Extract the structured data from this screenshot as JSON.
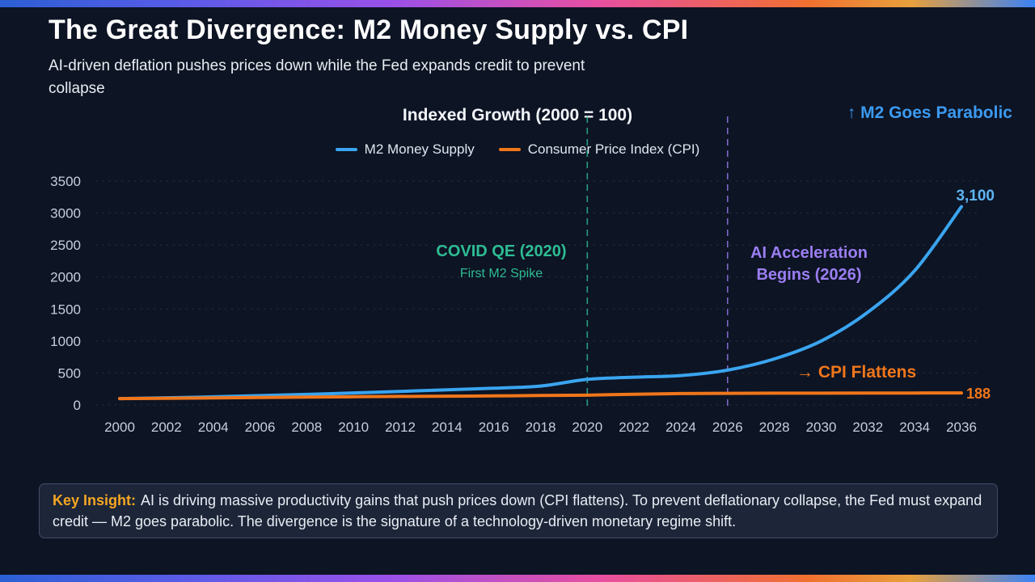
{
  "slide": {
    "title": "The Great Divergence: M2 Money Supply vs. CPI",
    "subtitle": "AI-driven deflation pushes prices down while the Fed expands credit to prevent collapse"
  },
  "chart_data": {
    "type": "line",
    "title": "Indexed Growth (2000 = 100)",
    "xlabel": "",
    "ylabel": "",
    "x": [
      2000,
      2002,
      2004,
      2006,
      2008,
      2010,
      2012,
      2014,
      2016,
      2018,
      2020,
      2022,
      2024,
      2026,
      2028,
      2030,
      2032,
      2034,
      2036
    ],
    "series": [
      {
        "name": "M2 Money Supply",
        "color": "#3aa5f0",
        "label_color": "#5eb5f2",
        "values": [
          100,
          112,
          128,
          146,
          165,
          188,
          212,
          236,
          262,
          296,
          400,
          435,
          460,
          545,
          720,
          1000,
          1450,
          2100,
          3100
        ],
        "end_label": "3,100"
      },
      {
        "name": "Consumer Price Index (CPI)",
        "color": "#f0761a",
        "label_color": "#f0761a",
        "values": [
          100,
          104,
          110,
          117,
          124,
          129,
          134,
          138,
          142,
          148,
          153,
          168,
          178,
          182,
          184,
          185,
          186,
          187,
          188
        ],
        "end_label": "188"
      }
    ],
    "ylim": [
      0,
      3500
    ],
    "yticks": [
      0,
      500,
      1000,
      1500,
      2000,
      2500,
      3000,
      3500
    ],
    "grid": true,
    "legend_position": "top",
    "vlines": [
      {
        "x": 2020,
        "color": "#2ebd93",
        "label": "COVID QE (2020)",
        "sublabel": "First M2 Spike"
      },
      {
        "x": 2026,
        "color": "#9b7ef2",
        "label": "AI Acceleration Begins (2026)"
      }
    ],
    "annotations": [
      {
        "text": "↑ M2 Goes Parabolic",
        "color": "#3b9af0"
      },
      {
        "text": "→ CPI Flattens",
        "color": "#f0761a"
      }
    ]
  },
  "insight": {
    "label": "Key Insight:",
    "label_color": "#f5a623",
    "text": "AI is driving massive productivity gains that push prices down (CPI flattens). To prevent deflationary collapse, the Fed must expand credit — M2 goes parabolic. The divergence is the signature of a technology-driven monetary regime shift."
  }
}
